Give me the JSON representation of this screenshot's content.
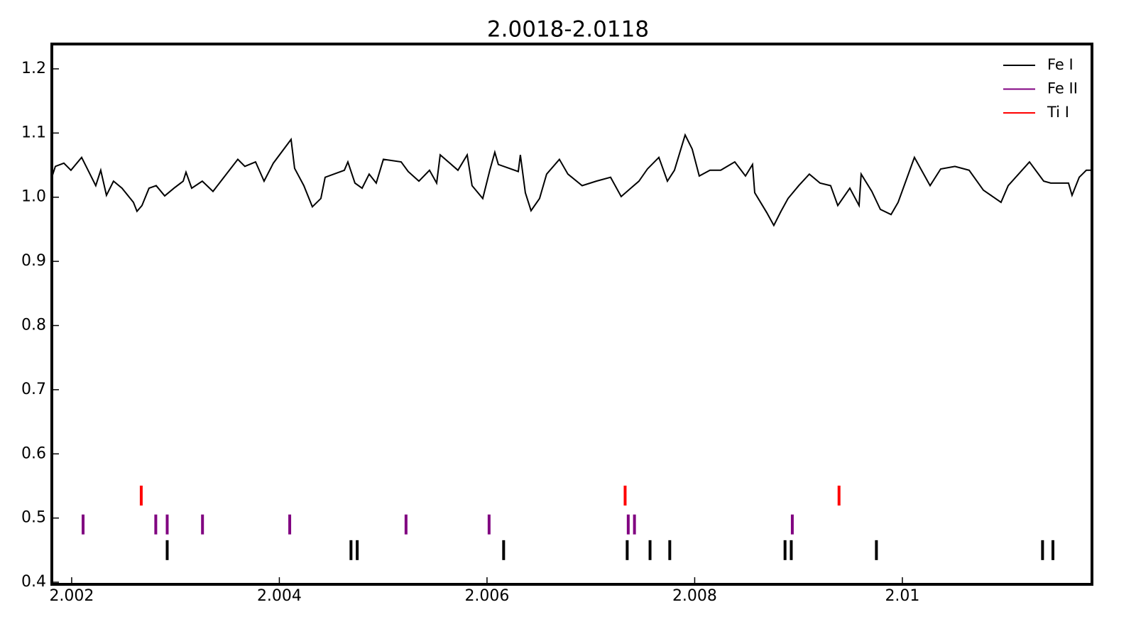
{
  "chart_data": {
    "type": "line",
    "title": "2.0018-2.0118",
    "xlim": [
      2.001809,
      2.011826
    ],
    "ylim": [
      0.3967,
      1.2387
    ],
    "xticks": [
      2.002,
      2.004,
      2.006,
      2.008,
      2.01
    ],
    "yticks": [
      0.4,
      0.5,
      0.6,
      0.7,
      0.8,
      0.9,
      {
        "value": 1.0,
        "label": "1.0"
      },
      1.1,
      1.2
    ],
    "legend": "upper right",
    "spectrum": {
      "color": "#000000",
      "x": [
        2.001809,
        2.001843,
        2.001925,
        2.001993,
        2.002096,
        2.002164,
        2.002232,
        2.00228,
        2.002335,
        2.002403,
        2.002485,
        2.002595,
        2.002629,
        2.002677,
        2.002745,
        2.002814,
        2.002896,
        2.002985,
        2.003074,
        2.003101,
        2.003156,
        2.003258,
        2.003361,
        2.0036,
        2.003668,
        2.003771,
        2.003853,
        2.003942,
        2.004113,
        2.004147,
        2.004236,
        2.004318,
        2.0044,
        2.004441,
        2.004626,
        2.00466,
        2.004728,
        2.004797,
        2.004865,
        2.004933,
        2.005002,
        2.005173,
        2.005241,
        2.005344,
        2.005446,
        2.005515,
        2.005549,
        2.00572,
        2.005809,
        2.005856,
        2.005959,
        2.006027,
        2.006075,
        2.006109,
        2.006301,
        2.006321,
        2.006369,
        2.006424,
        2.006506,
        2.006574,
        2.006697,
        2.006779,
        2.006916,
        2.007053,
        2.00719,
        2.007292,
        2.007463,
        2.007545,
        2.007655,
        2.007737,
        2.007805,
        2.007908,
        2.007976,
        2.008044,
        2.008147,
        2.00825,
        2.008386,
        2.008489,
        2.008557,
        2.008578,
        2.008694,
        2.008762,
        2.008831,
        2.008899,
        2.009002,
        2.009104,
        2.009207,
        2.009309,
        2.009378,
        2.009494,
        2.009583,
        2.009603,
        2.009706,
        2.009788,
        2.009891,
        2.009959,
        2.010116,
        2.010267,
        2.010369,
        2.010506,
        2.010643,
        2.01078,
        2.01095,
        2.011019,
        2.011224,
        2.011361,
        2.011429,
        2.0116,
        2.011634,
        2.011703,
        2.011771,
        2.011826
      ],
      "values": [
        1.031,
        1.048,
        1.053,
        1.042,
        1.062,
        1.04,
        1.018,
        1.042,
        1.003,
        1.025,
        1.014,
        0.992,
        0.978,
        0.987,
        1.014,
        1.018,
        1.002,
        1.014,
        1.025,
        1.039,
        1.014,
        1.025,
        1.009,
        1.059,
        1.048,
        1.055,
        1.025,
        1.053,
        1.09,
        1.045,
        1.018,
        0.985,
        0.998,
        1.031,
        1.042,
        1.055,
        1.022,
        1.014,
        1.036,
        1.022,
        1.059,
        1.055,
        1.04,
        1.025,
        1.042,
        1.022,
        1.066,
        1.042,
        1.066,
        1.018,
        0.998,
        1.042,
        1.07,
        1.051,
        1.04,
        1.066,
        1.007,
        0.979,
        0.998,
        1.036,
        1.059,
        1.036,
        1.018,
        1.025,
        1.031,
        1.001,
        1.025,
        1.044,
        1.062,
        1.025,
        1.042,
        1.097,
        1.075,
        1.033,
        1.042,
        1.042,
        1.055,
        1.033,
        1.051,
        1.007,
        0.976,
        0.956,
        0.978,
        0.998,
        1.018,
        1.036,
        1.022,
        1.018,
        0.987,
        1.014,
        0.987,
        1.036,
        1.009,
        0.981,
        0.973,
        0.992,
        1.062,
        1.018,
        1.044,
        1.048,
        1.042,
        1.011,
        0.992,
        1.018,
        1.055,
        1.025,
        1.022,
        1.022,
        1.003,
        1.031,
        1.042,
        1.042
      ]
    },
    "series": [
      {
        "name": "Fe I",
        "color": "#000000",
        "x": [
          2.00292,
          2.00469,
          2.00475,
          2.00616,
          2.00735,
          2.00757,
          2.00776,
          2.00887,
          2.00893,
          2.00975,
          2.01135,
          2.01145
        ],
        "values": [
          0.45,
          0.45,
          0.45,
          0.45,
          0.45,
          0.45,
          0.45,
          0.45,
          0.45,
          0.45,
          0.45,
          0.45
        ]
      },
      {
        "name": "Fe II",
        "color": "#800080",
        "x": [
          2.00211,
          2.00281,
          2.00292,
          2.00326,
          2.0041,
          2.00522,
          2.00602,
          2.00736,
          2.00742,
          2.00894
        ],
        "values": [
          0.49,
          0.49,
          0.49,
          0.49,
          0.49,
          0.49,
          0.49,
          0.49,
          0.49,
          0.49
        ]
      },
      {
        "name": "Ti I",
        "color": "#ff0000",
        "x": [
          2.00267,
          2.00733,
          2.00939
        ],
        "values": [
          0.535,
          0.535,
          0.535
        ]
      }
    ]
  }
}
